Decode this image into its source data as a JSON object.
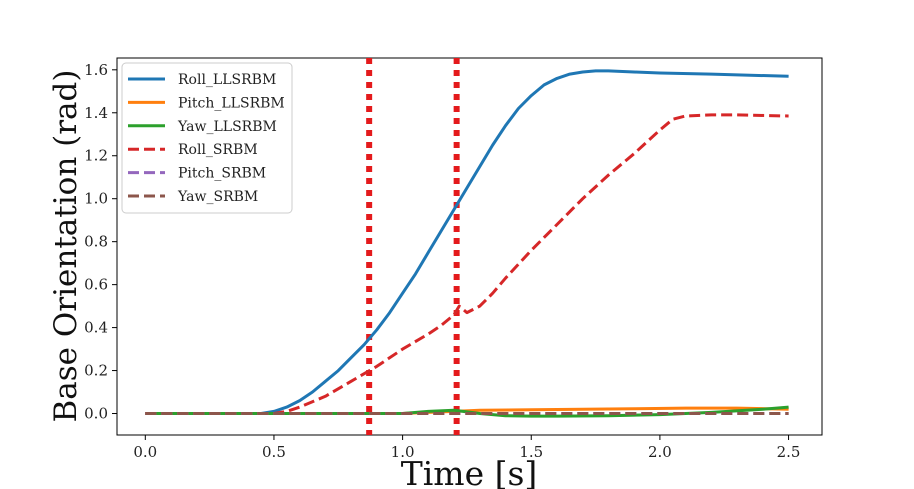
{
  "chart_data": {
    "type": "line",
    "xlabel": "Time   [s]",
    "ylabel": "Base   Orientation   (rad)",
    "xlim": [
      -0.11,
      2.63
    ],
    "ylim": [
      -0.1,
      1.655
    ],
    "xticks": [
      0.0,
      0.5,
      1.0,
      1.5,
      2.0,
      2.5
    ],
    "xtick_labels": [
      "0.0",
      "0.5",
      "1.0",
      "1.5",
      "2.0",
      "2.5"
    ],
    "yticks": [
      0.0,
      0.2,
      0.4,
      0.6,
      0.8,
      1.0,
      1.2,
      1.4,
      1.6
    ],
    "ytick_labels": [
      "0.0",
      "0.2",
      "0.4",
      "0.6",
      "0.8",
      "1.0",
      "1.2",
      "1.4",
      "1.6"
    ],
    "legend_position": "top-left",
    "vlines": [
      {
        "x": 0.87,
        "color": "#e41a1c",
        "style": "dotted"
      },
      {
        "x": 1.21,
        "color": "#e41a1c",
        "style": "dotted"
      }
    ],
    "series": [
      {
        "name": "Roll_LLSRBM",
        "color": "#1f77b4",
        "dash": "solid",
        "x": [
          0.0,
          0.45,
          0.5,
          0.55,
          0.6,
          0.65,
          0.7,
          0.75,
          0.8,
          0.85,
          0.9,
          0.95,
          1.0,
          1.05,
          1.1,
          1.15,
          1.2,
          1.25,
          1.3,
          1.35,
          1.4,
          1.45,
          1.5,
          1.55,
          1.6,
          1.65,
          1.7,
          1.75,
          1.8,
          1.9,
          2.0,
          2.2,
          2.5
        ],
        "y": [
          0.0,
          0.0,
          0.01,
          0.03,
          0.06,
          0.1,
          0.15,
          0.2,
          0.26,
          0.32,
          0.39,
          0.47,
          0.56,
          0.65,
          0.75,
          0.85,
          0.95,
          1.05,
          1.15,
          1.25,
          1.34,
          1.42,
          1.48,
          1.53,
          1.56,
          1.58,
          1.59,
          1.595,
          1.595,
          1.59,
          1.585,
          1.58,
          1.57
        ]
      },
      {
        "name": "Pitch_LLSRBM",
        "color": "#ff7f0e",
        "dash": "solid",
        "x": [
          0.0,
          0.9,
          1.0,
          1.1,
          1.2,
          1.3,
          1.5,
          1.7,
          1.9,
          2.1,
          2.3,
          2.5
        ],
        "y": [
          0.0,
          0.0,
          0.0,
          0.005,
          0.01,
          0.015,
          0.018,
          0.02,
          0.022,
          0.025,
          0.025,
          0.02
        ]
      },
      {
        "name": "Yaw_LLSRBM",
        "color": "#2ca02c",
        "dash": "solid",
        "x": [
          0.0,
          0.9,
          1.0,
          1.1,
          1.2,
          1.3,
          1.4,
          1.5,
          1.6,
          1.8,
          2.0,
          2.2,
          2.4,
          2.5
        ],
        "y": [
          0.0,
          0.0,
          0.0,
          0.01,
          0.015,
          0.0,
          -0.01,
          -0.012,
          -0.012,
          -0.01,
          -0.005,
          0.005,
          0.02,
          0.03
        ]
      },
      {
        "name": "Roll_SRBM",
        "color": "#d62728",
        "dash": "dashed",
        "x": [
          0.0,
          0.5,
          0.55,
          0.6,
          0.7,
          0.8,
          0.9,
          1.0,
          1.1,
          1.15,
          1.2,
          1.22,
          1.25,
          1.3,
          1.35,
          1.4,
          1.5,
          1.6,
          1.7,
          1.8,
          1.9,
          2.0,
          2.05,
          2.1,
          2.2,
          2.3,
          2.5
        ],
        "y": [
          0.0,
          0.0,
          0.01,
          0.03,
          0.08,
          0.15,
          0.22,
          0.3,
          0.37,
          0.41,
          0.46,
          0.5,
          0.47,
          0.5,
          0.56,
          0.63,
          0.76,
          0.88,
          1.0,
          1.11,
          1.21,
          1.32,
          1.37,
          1.385,
          1.39,
          1.39,
          1.385
        ]
      },
      {
        "name": "Pitch_SRBM",
        "color": "#9467bd",
        "dash": "dashed",
        "x": [
          0.0,
          0.5,
          1.0,
          1.5,
          2.0,
          2.5
        ],
        "y": [
          0.0,
          0.0,
          0.0,
          0.0,
          0.0,
          0.0
        ]
      },
      {
        "name": "Yaw_SRBM",
        "color": "#8c564b",
        "dash": "dashed",
        "x": [
          0.0,
          0.5,
          1.0,
          1.5,
          2.0,
          2.5
        ],
        "y": [
          0.0,
          0.0,
          0.0,
          0.0,
          0.0,
          0.0
        ]
      }
    ]
  }
}
